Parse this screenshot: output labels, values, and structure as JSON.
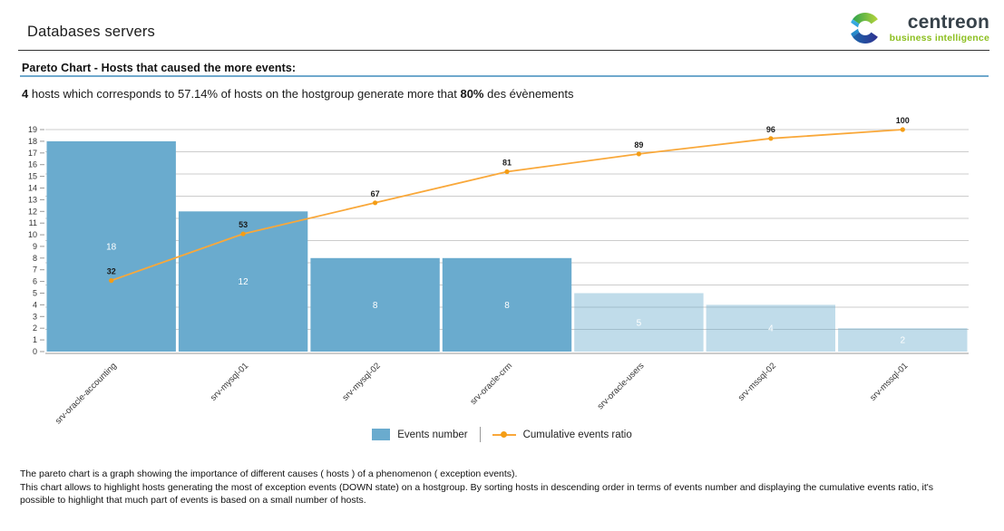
{
  "header": {
    "title": "Databases servers",
    "logo": {
      "brand": "centreon",
      "tagline": "business intelligence"
    }
  },
  "section": {
    "heading": "Pareto Chart - Hosts that caused the more events:"
  },
  "summary": {
    "bold1": "4",
    "text1": " hosts which corresponds to 57.14% of hosts on the hostgroup generate more that ",
    "bold2": "80%",
    "text2": " des évènements"
  },
  "chart_data": {
    "type": "pareto (bar + line)",
    "title": "Pareto Chart - Hosts that caused the more events",
    "categories": [
      "srv-oracle-accounting",
      "srv-mysql-01",
      "srv-mysql-02",
      "srv-oracle-crm",
      "srv-oracle-users",
      "srv-mssql-02",
      "srv-mssql-01"
    ],
    "series": [
      {
        "name": "Events number",
        "type": "bar",
        "values": [
          18,
          12,
          8,
          8,
          5,
          4,
          2
        ],
        "emphasized": [
          true,
          true,
          true,
          true,
          false,
          false,
          false
        ]
      },
      {
        "name": "Cumulative events ratio",
        "type": "line",
        "unit": "%",
        "values": [
          32,
          53,
          67,
          81,
          89,
          96,
          100
        ]
      }
    ],
    "ylim": [
      0,
      19
    ],
    "y_tick_step": 1,
    "y2lim": [
      0,
      100
    ],
    "gridlines_pct": [
      100,
      90,
      80,
      70,
      60,
      50,
      40,
      30,
      20,
      10
    ],
    "grid": true,
    "legend_position": "bottom",
    "x_label_rotation_deg": -45
  },
  "footer": {
    "lines": [
      "The pareto chart is a graph showing the importance of different causes ( hosts ) of a phenomenon ( exception events).",
      "This chart allows to highlight hosts generating the most of exception events (DOWN state) on a hostgroup. By sorting hosts in descending order in terms of events number and displaying the cumulative events ratio, it's",
      "possible to highlight that much part of events is based on a small number of hosts."
    ]
  },
  "colors": {
    "bar": "#6aabce",
    "bar_muted_opacity": 0.42,
    "line": "#f9a83a",
    "marker": "#f49d15",
    "grid": "#cccccc",
    "axis": "#9a9a9a",
    "tick_text": "#333333",
    "bar_value_text": "#ffffff",
    "point_label_text": "#1a1a1a",
    "accent_underline": "#6fa9cd",
    "brand_navy": "#37424a",
    "brand_green": "#8cbf1f"
  }
}
